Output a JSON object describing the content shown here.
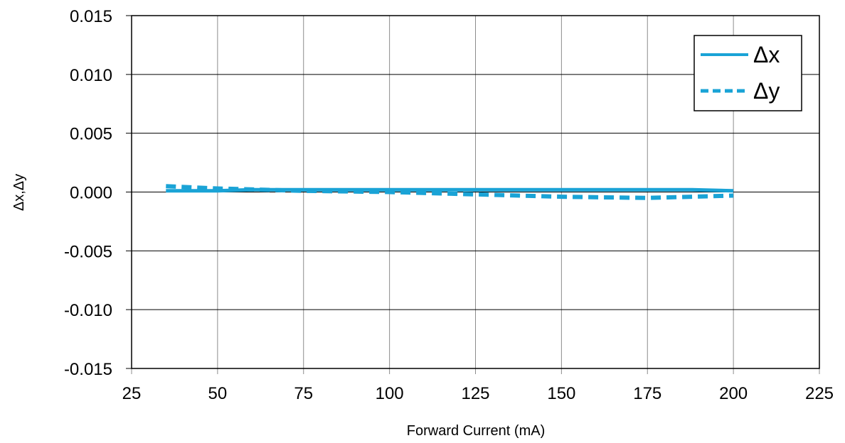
{
  "chart_data": {
    "type": "line",
    "title": "",
    "xlabel": "Forward Current (mA)",
    "ylabel": "Δx,Δy",
    "xlim": [
      25,
      225
    ],
    "ylim": [
      -0.015,
      0.015
    ],
    "x_ticks": [
      "25",
      "50",
      "75",
      "100",
      "125",
      "150",
      "175",
      "200",
      "225"
    ],
    "y_ticks": [
      "0.015",
      "0.010",
      "0.005",
      "0.000",
      "-0.005",
      "-0.010",
      "-0.015"
    ],
    "grid": true,
    "legend_position": "top-right",
    "series": [
      {
        "name": "Δx",
        "style": "solid",
        "color": "#1aa3d6",
        "x": [
          35,
          50,
          60,
          75,
          100,
          125,
          150,
          175,
          188,
          200
        ],
        "y": [
          0.0001,
          0.0001,
          0.0002,
          0.0002,
          0.0002,
          0.0002,
          0.0002,
          0.0002,
          0.0002,
          0.0001
        ]
      },
      {
        "name": "Δy",
        "style": "dashed",
        "color": "#1aa3d6",
        "x": [
          35,
          50,
          75,
          100,
          125,
          150,
          175,
          200
        ],
        "y": [
          0.0005,
          0.0003,
          0.0001,
          0.0,
          -0.0002,
          -0.0004,
          -0.0005,
          -0.0003
        ]
      }
    ]
  }
}
